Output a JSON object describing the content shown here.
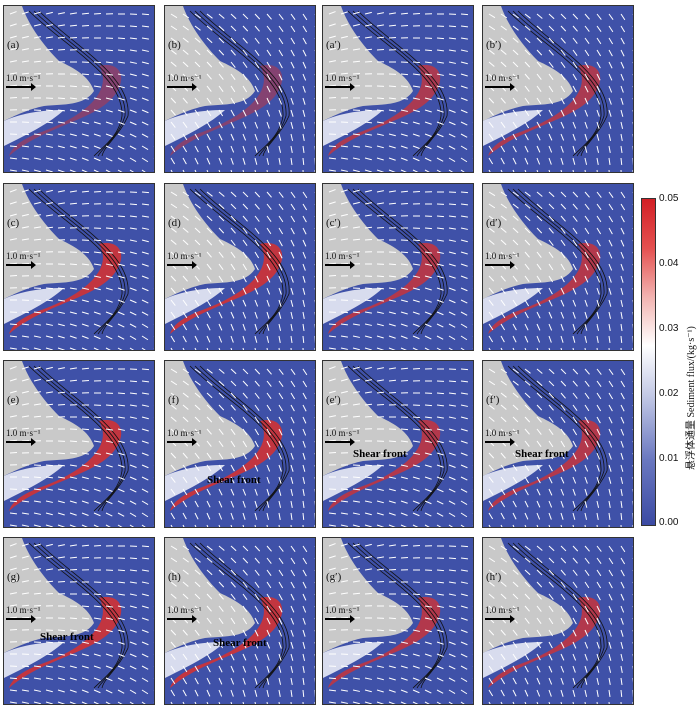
{
  "chart_data": {
    "type": "heatmap",
    "panels": [
      {
        "label": "(a)",
        "front_label": ""
      },
      {
        "label": "(b)",
        "front_label": ""
      },
      {
        "label": "(a′)",
        "front_label": ""
      },
      {
        "label": "(b′)",
        "front_label": ""
      },
      {
        "label": "(c)",
        "front_label": ""
      },
      {
        "label": "(d)",
        "front_label": ""
      },
      {
        "label": "(c′)",
        "front_label": ""
      },
      {
        "label": "(d′)",
        "front_label": ""
      },
      {
        "label": "(e)",
        "front_label": ""
      },
      {
        "label": "(f)",
        "front_label": "Shear front"
      },
      {
        "label": "(e′)",
        "front_label": "Shear front"
      },
      {
        "label": "(f′)",
        "front_label": "Shear front"
      },
      {
        "label": "(g)",
        "front_label": "Shear front"
      },
      {
        "label": "(h)",
        "front_label": "Shear front"
      },
      {
        "label": "(g′)",
        "front_label": ""
      },
      {
        "label": "(h′)",
        "front_label": ""
      }
    ],
    "vector_scale_label": "1.0 m·s⁻¹",
    "colorbar": {
      "title": "悬浮体通量 Sediment flux/(kg·s⁻¹)",
      "ticks": [
        "0.05",
        "0.04",
        "0.03",
        "0.02",
        "0.01",
        "0.00"
      ],
      "range": [
        0,
        0.05
      ],
      "colors": {
        "low": "#3b4aa3",
        "mid": "#ffffff",
        "high": "#d21f25"
      }
    }
  }
}
